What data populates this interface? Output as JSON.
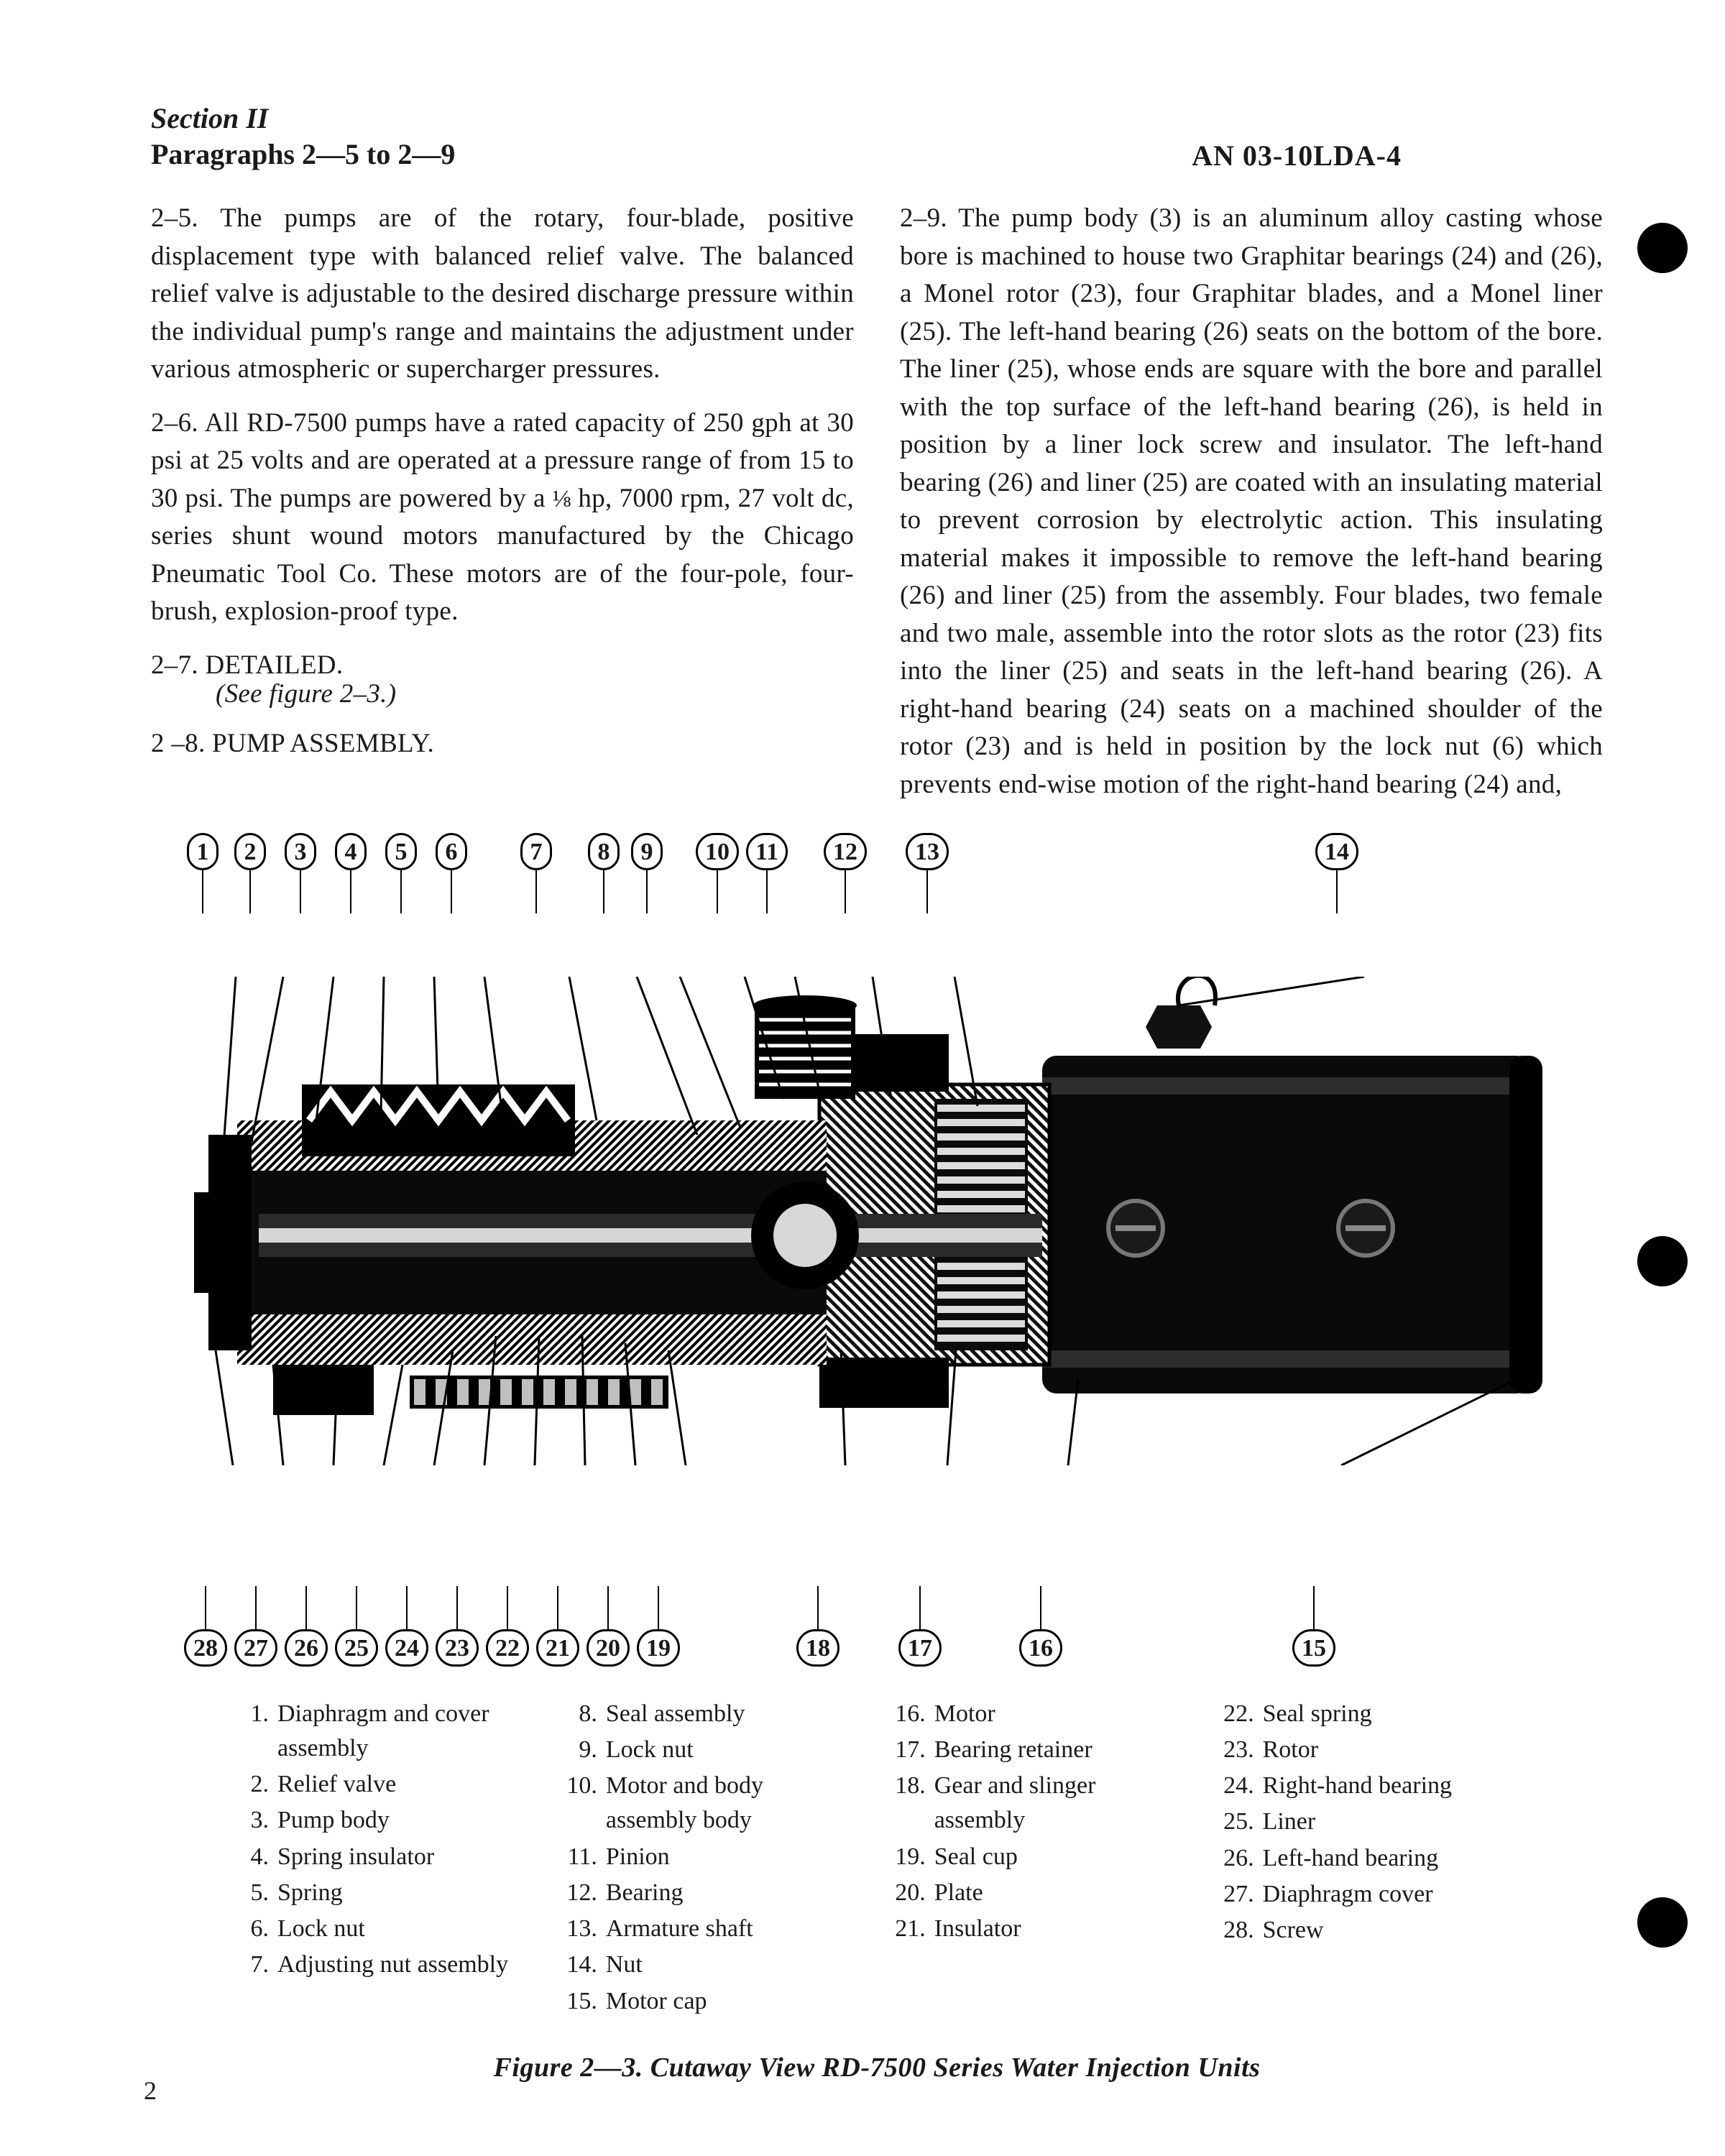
{
  "header": {
    "section": "Section II",
    "paragraphs": "Paragraphs 2—5 to 2—9",
    "docnum": "AN 03-10LDA-4"
  },
  "body": {
    "p25": "2–5. The pumps are of the rotary, four-blade, positive displacement type with balanced relief valve. The balanced relief valve is adjustable to the desired discharge pressure within the individual pump's range and maintains the adjustment under various atmospheric or supercharger pressures.",
    "p26a": "2–6. All RD-7500 pumps have a rated capacity of 250 gph at 30 psi at 25 volts and are operated at a pressure range of from 15 to 30 psi. The pumps are powered by a ",
    "p26frac": "⅛",
    "p26b": " hp, 7000 rpm, 27 volt dc, series shunt wound motors manufactured by the Chicago Pneumatic Tool Co. These motors are of the four-pole, four-brush, explosion-proof type.",
    "p27": "2–7. DETAILED.",
    "p27ref": "(See figure 2–3.)",
    "p28": "2 –8. PUMP ASSEMBLY.",
    "p29": "2–9. The pump body (3) is an aluminum alloy casting whose bore is machined to house two Graphitar bearings (24) and (26), a Monel rotor (23), four Graphitar blades, and a Monel liner (25). The left-hand bearing (26) seats on the bottom of the bore. The liner (25), whose ends are square with the bore and parallel with the top surface of the left-hand bearing (26), is held in position by a liner lock screw and insulator. The left-hand bearing (26) and liner (25) are coated with an insulating material to prevent corrosion by electrolytic action. This insulating material makes it impossible to remove the left-hand bearing (26) and liner (25) from the assembly. Four blades, two female and two male, assemble into the rotor slots as the rotor (23) fits into the liner (25) and seats in the left-hand bearing (26). A right-hand bearing (24) seats on a machined shoulder of the rotor (23) and is held in position by the lock nut (6) which prevents end-wise motion of the right-hand bearing (24) and,"
  },
  "figure": {
    "top_labels": [
      "1",
      "2",
      "3",
      "4",
      "5",
      "6",
      "7",
      "8",
      "9",
      "10",
      "11",
      "12",
      "13",
      "14"
    ],
    "top_x": [
      30,
      96,
      166,
      236,
      306,
      376,
      494,
      588,
      648,
      738,
      808,
      916,
      1030,
      1600
    ],
    "bottom_labels": [
      "28",
      "27",
      "26",
      "25",
      "24",
      "23",
      "22",
      "21",
      "20",
      "19",
      "18",
      "17",
      "16",
      "15"
    ],
    "bottom_x": [
      26,
      96,
      166,
      236,
      306,
      376,
      446,
      516,
      586,
      656,
      878,
      1020,
      1188,
      1568
    ],
    "caption": "Figure 2—3. Cutaway View RD-7500 Series Water Injection Units"
  },
  "legend": {
    "col1": [
      {
        "n": "1.",
        "t": "Diaphragm and cover assembly"
      },
      {
        "n": "2.",
        "t": "Relief valve"
      },
      {
        "n": "3.",
        "t": "Pump body"
      },
      {
        "n": "4.",
        "t": "Spring insulator"
      },
      {
        "n": "5.",
        "t": "Spring"
      },
      {
        "n": "6.",
        "t": "Lock nut"
      },
      {
        "n": "7.",
        "t": "Adjusting nut assembly"
      }
    ],
    "col2": [
      {
        "n": "8.",
        "t": "Seal assembly"
      },
      {
        "n": "9.",
        "t": "Lock nut"
      },
      {
        "n": "10.",
        "t": "Motor and body assembly body"
      },
      {
        "n": "11.",
        "t": "Pinion"
      },
      {
        "n": "12.",
        "t": "Bearing"
      },
      {
        "n": "13.",
        "t": "Armature shaft"
      },
      {
        "n": "14.",
        "t": "Nut"
      },
      {
        "n": "15.",
        "t": "Motor cap"
      }
    ],
    "col3": [
      {
        "n": "16.",
        "t": "Motor"
      },
      {
        "n": "17.",
        "t": "Bearing retainer"
      },
      {
        "n": "18.",
        "t": "Gear and slinger assembly"
      },
      {
        "n": "19.",
        "t": "Seal cup"
      },
      {
        "n": "20.",
        "t": "Plate"
      },
      {
        "n": "21.",
        "t": "Insulator"
      }
    ],
    "col4": [
      {
        "n": "22.",
        "t": "Seal spring"
      },
      {
        "n": "23.",
        "t": "Rotor"
      },
      {
        "n": "24.",
        "t": "Right-hand bearing"
      },
      {
        "n": "25.",
        "t": "Liner"
      },
      {
        "n": "26.",
        "t": "Left-hand bearing"
      },
      {
        "n": "27.",
        "t": "Diaphragm cover"
      },
      {
        "n": "28.",
        "t": "Screw"
      }
    ]
  },
  "pageno": "2"
}
